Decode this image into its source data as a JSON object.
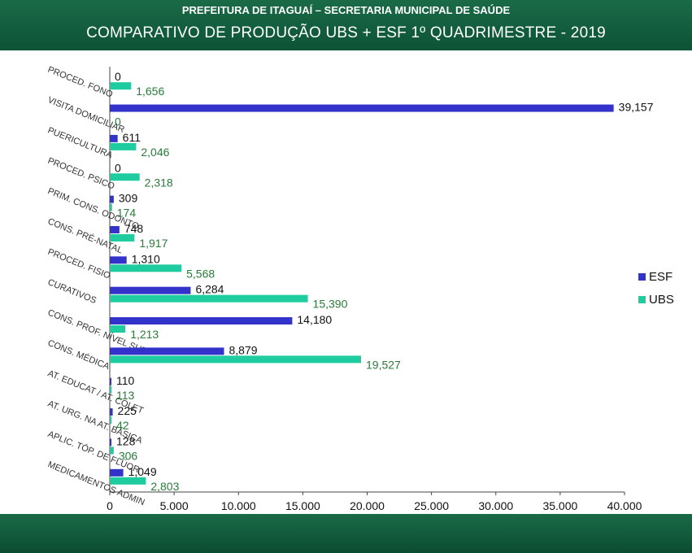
{
  "header": {
    "supertitle": "PREFEITURA DE ITAGUAÍ – SECRETARIA MUNICIPAL DE SAÚDE",
    "title": "COMPARATIVO DE PRODUÇÃO UBS + ESF  1º QUADRIMESTRE - 2019"
  },
  "colors": {
    "esf": "#3333cc",
    "ubs": "#1ecca0",
    "header": "#145f40"
  },
  "chart_data": {
    "type": "bar",
    "orientation": "horizontal",
    "title": "COMPARATIVO DE PRODUÇÃO UBS + ESF  1º QUADRIMESTRE - 2019",
    "categories": [
      "PROCED. FONO",
      "VISITA DOMICILIAR",
      "PUERICULTURA",
      "PROCED. PSICO",
      "PRIM. CONS. ODONTO",
      "CONS. PRÉ-NATAL",
      "PROCED. FISIO",
      "CURATIVOS",
      "CONS. PROF. NÍVEL SUP.",
      "CONS. MÉDICA",
      "AT. EDUCAT / AT. COLET",
      "AT. URG. NA AT. BÁSICA",
      "APLIC. TÓP. DE FLÚOR",
      "MEDICAMENTOS ADMIN"
    ],
    "series": [
      {
        "name": "ESF",
        "values": [
          0,
          39157,
          611,
          0,
          309,
          748,
          1310,
          6284,
          14180,
          8879,
          110,
          225,
          128,
          1049
        ],
        "labels": [
          "0",
          "39,157",
          "611",
          "0",
          "309",
          "748",
          "1,310",
          "6,284",
          "14,180",
          "8,879",
          "110",
          "225",
          "128",
          "1,049"
        ]
      },
      {
        "name": "UBS",
        "values": [
          1656,
          0,
          2046,
          2318,
          174,
          1917,
          5568,
          15390,
          1213,
          19527,
          113,
          42,
          306,
          2803
        ],
        "labels": [
          "1,656",
          "0",
          "2,046",
          "2,318",
          "174",
          "1,917",
          "5,568",
          "15,390",
          "1,213",
          "19,527",
          "113",
          "42",
          "306",
          "2,803"
        ]
      }
    ],
    "xlim": [
      0,
      40000
    ],
    "xticks": [
      0,
      5000,
      10000,
      15000,
      20000,
      25000,
      30000,
      35000,
      40000
    ],
    "xtick_labels": [
      "0",
      "5.000",
      "10.000",
      "15.000",
      "20.000",
      "25.000",
      "30.000",
      "35.000",
      "40.000"
    ],
    "legend": [
      "ESF",
      "UBS"
    ],
    "legend_position": "right",
    "grid": false
  }
}
